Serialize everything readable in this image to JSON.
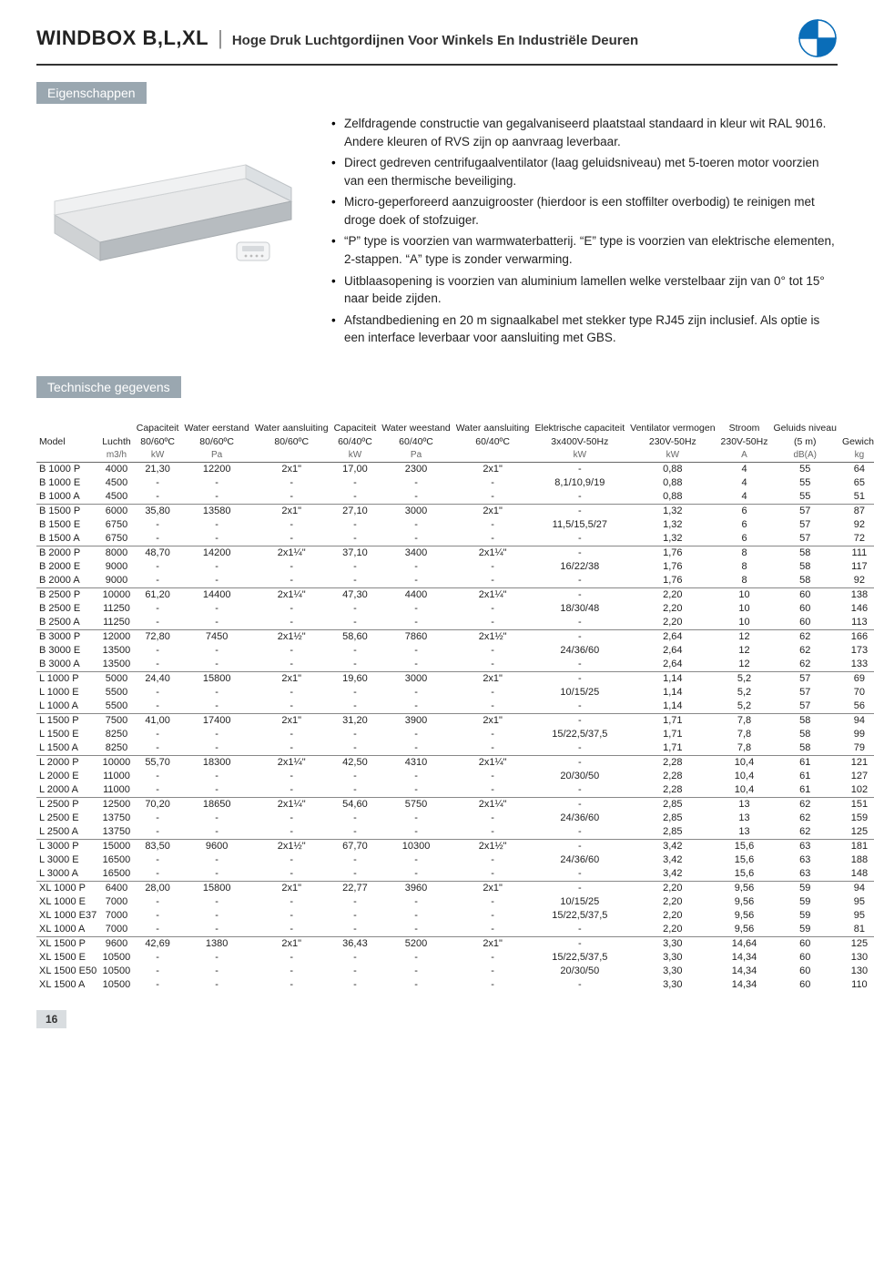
{
  "header": {
    "product": "WINDBOX B,L,XL",
    "subtitle": "Hoge Druk Luchtgordijnen Voor Winkels En Industriële Deuren",
    "logo_colors": {
      "tl": "#0a6db8",
      "tr": "#ffffff",
      "bl": "#ffffff",
      "br": "#0a6db8",
      "stroke": "#0a6db8"
    }
  },
  "section_eigenschappen": {
    "label": "Eigenschappen",
    "bullets": [
      "Zelfdragende constructie van gegalvaniseerd plaatstaal standaard in kleur wit RAL 9016. Andere kleuren of RVS zijn op aanvraag leverbaar.",
      "Direct gedreven centrifugaalventilator (laag geluidsniveau) met 5-toeren motor voorzien van een thermische beveiliging.",
      "Micro-geperforeerd aanzuigrooster (hierdoor is een stoffilter overbodig) te reinigen met droge doek of stofzuiger.",
      "“P” type is voorzien van warmwaterbatterij. “E” type is voorzien van elektrische elementen, 2-stappen. “A” type is zonder verwarming.",
      "Uitblaasopening is voorzien van aluminium lamellen welke verstelbaar zijn van 0° tot 15° naar beide zijden.",
      "Afstandbediening en 20 m signaalkabel met stekker type RJ45 zijn inclusief. Als optie is een interface leverbaar voor aansluiting met GBS."
    ]
  },
  "section_tech": {
    "label": "Technische gegevens",
    "columns": [
      {
        "l1": "",
        "l2": "Model",
        "unit": ""
      },
      {
        "l1": "",
        "l2": "Luchth",
        "unit": "m3/h"
      },
      {
        "l1": "Capaciteit",
        "l2": "80/60ºC",
        "unit": "kW"
      },
      {
        "l1": "Water eerstand",
        "l2": "80/60ºC",
        "unit": "Pa"
      },
      {
        "l1": "Water aansluiting",
        "l2": "80/60ºC",
        "unit": ""
      },
      {
        "l1": "Capaciteit",
        "l2": "60/40ºC",
        "unit": "kW"
      },
      {
        "l1": "Water weestand",
        "l2": "60/40ºC",
        "unit": "Pa"
      },
      {
        "l1": "Water aansluiting",
        "l2": "60/40ºC",
        "unit": ""
      },
      {
        "l1": "Elektrische capaciteit",
        "l2": "3x400V-50Hz",
        "unit": "kW"
      },
      {
        "l1": "Ventilator vermogen",
        "l2": "230V-50Hz",
        "unit": "kW"
      },
      {
        "l1": "Stroom",
        "l2": "230V-50Hz",
        "unit": "A"
      },
      {
        "l1": "Geluids niveau",
        "l2": "(5 m)",
        "unit": "dB(A)"
      },
      {
        "l1": "",
        "l2": "Gewicht",
        "unit": "kg"
      }
    ],
    "groups": [
      [
        [
          "B 1000 P",
          "4000",
          "21,30",
          "12200",
          "2x1\"",
          "17,00",
          "2300",
          "2x1\"",
          "-",
          "0,88",
          "4",
          "55",
          "64"
        ],
        [
          "B 1000 E",
          "4500",
          "-",
          "-",
          "-",
          "-",
          "-",
          "-",
          "8,1/10,9/19",
          "0,88",
          "4",
          "55",
          "65"
        ],
        [
          "B 1000 A",
          "4500",
          "-",
          "-",
          "-",
          "-",
          "-",
          "-",
          "-",
          "0,88",
          "4",
          "55",
          "51"
        ]
      ],
      [
        [
          "B 1500 P",
          "6000",
          "35,80",
          "13580",
          "2x1\"",
          "27,10",
          "3000",
          "2x1\"",
          "-",
          "1,32",
          "6",
          "57",
          "87"
        ],
        [
          "B 1500 E",
          "6750",
          "-",
          "-",
          "-",
          "-",
          "-",
          "-",
          "11,5/15,5/27",
          "1,32",
          "6",
          "57",
          "92"
        ],
        [
          "B 1500 A",
          "6750",
          "-",
          "-",
          "-",
          "-",
          "-",
          "-",
          "-",
          "1,32",
          "6",
          "57",
          "72"
        ]
      ],
      [
        [
          "B 2000 P",
          "8000",
          "48,70",
          "14200",
          "2x1¼\"",
          "37,10",
          "3400",
          "2x1¼\"",
          "-",
          "1,76",
          "8",
          "58",
          "111"
        ],
        [
          "B 2000 E",
          "9000",
          "-",
          "-",
          "-",
          "-",
          "-",
          "-",
          "16/22/38",
          "1,76",
          "8",
          "58",
          "117"
        ],
        [
          "B 2000 A",
          "9000",
          "-",
          "-",
          "-",
          "-",
          "-",
          "-",
          "-",
          "1,76",
          "8",
          "58",
          "92"
        ]
      ],
      [
        [
          "B 2500 P",
          "10000",
          "61,20",
          "14400",
          "2x1¼\"",
          "47,30",
          "4400",
          "2x1¼\"",
          "-",
          "2,20",
          "10",
          "60",
          "138"
        ],
        [
          "B 2500 E",
          "11250",
          "-",
          "-",
          "-",
          "-",
          "-",
          "-",
          "18/30/48",
          "2,20",
          "10",
          "60",
          "146"
        ],
        [
          "B 2500 A",
          "11250",
          "-",
          "-",
          "-",
          "-",
          "-",
          "-",
          "-",
          "2,20",
          "10",
          "60",
          "113"
        ]
      ],
      [
        [
          "B 3000 P",
          "12000",
          "72,80",
          "7450",
          "2x1½\"",
          "58,60",
          "7860",
          "2x1½\"",
          "-",
          "2,64",
          "12",
          "62",
          "166"
        ],
        [
          "B 3000 E",
          "13500",
          "-",
          "-",
          "-",
          "-",
          "-",
          "-",
          "24/36/60",
          "2,64",
          "12",
          "62",
          "173"
        ],
        [
          "B 3000 A",
          "13500",
          "-",
          "-",
          "-",
          "-",
          "-",
          "-",
          "-",
          "2,64",
          "12",
          "62",
          "133"
        ]
      ],
      [
        [
          "L 1000 P",
          "5000",
          "24,40",
          "15800",
          "2x1\"",
          "19,60",
          "3000",
          "2x1\"",
          "-",
          "1,14",
          "5,2",
          "57",
          "69"
        ],
        [
          "L 1000 E",
          "5500",
          "-",
          "-",
          "-",
          "-",
          "-",
          "-",
          "10/15/25",
          "1,14",
          "5,2",
          "57",
          "70"
        ],
        [
          "L 1000 A",
          "5500",
          "-",
          "-",
          "-",
          "-",
          "-",
          "-",
          "-",
          "1,14",
          "5,2",
          "57",
          "56"
        ]
      ],
      [
        [
          "L 1500 P",
          "7500",
          "41,00",
          "17400",
          "2x1\"",
          "31,20",
          "3900",
          "2x1\"",
          "-",
          "1,71",
          "7,8",
          "58",
          "94"
        ],
        [
          "L 1500 E",
          "8250",
          "-",
          "-",
          "-",
          "-",
          "-",
          "-",
          "15/22,5/37,5",
          "1,71",
          "7,8",
          "58",
          "99"
        ],
        [
          "L 1500 A",
          "8250",
          "-",
          "-",
          "-",
          "-",
          "-",
          "-",
          "-",
          "1,71",
          "7,8",
          "58",
          "79"
        ]
      ],
      [
        [
          "L 2000 P",
          "10000",
          "55,70",
          "18300",
          "2x1¼\"",
          "42,50",
          "4310",
          "2x1¼\"",
          "-",
          "2,28",
          "10,4",
          "61",
          "121"
        ],
        [
          "L 2000 E",
          "11000",
          "-",
          "-",
          "-",
          "-",
          "-",
          "-",
          "20/30/50",
          "2,28",
          "10,4",
          "61",
          "127"
        ],
        [
          "L 2000 A",
          "11000",
          "-",
          "-",
          "-",
          "-",
          "-",
          "-",
          "-",
          "2,28",
          "10,4",
          "61",
          "102"
        ]
      ],
      [
        [
          "L 2500 P",
          "12500",
          "70,20",
          "18650",
          "2x1¼\"",
          "54,60",
          "5750",
          "2x1¼\"",
          "-",
          "2,85",
          "13",
          "62",
          "151"
        ],
        [
          "L 2500 E",
          "13750",
          "-",
          "-",
          "-",
          "-",
          "-",
          "-",
          "24/36/60",
          "2,85",
          "13",
          "62",
          "159"
        ],
        [
          "L 2500 A",
          "13750",
          "-",
          "-",
          "-",
          "-",
          "-",
          "-",
          "-",
          "2,85",
          "13",
          "62",
          "125"
        ]
      ],
      [
        [
          "L 3000 P",
          "15000",
          "83,50",
          "9600",
          "2x1½\"",
          "67,70",
          "10300",
          "2x1½\"",
          "-",
          "3,42",
          "15,6",
          "63",
          "181"
        ],
        [
          "L 3000 E",
          "16500",
          "-",
          "-",
          "-",
          "-",
          "-",
          "-",
          "24/36/60",
          "3,42",
          "15,6",
          "63",
          "188"
        ],
        [
          "L 3000 A",
          "16500",
          "-",
          "-",
          "-",
          "-",
          "-",
          "-",
          "-",
          "3,42",
          "15,6",
          "63",
          "148"
        ]
      ],
      [
        [
          "XL 1000 P",
          "6400",
          "28,00",
          "15800",
          "2x1\"",
          "22,77",
          "3960",
          "2x1\"",
          "-",
          "2,20",
          "9,56",
          "59",
          "94"
        ],
        [
          "XL 1000 E",
          "7000",
          "-",
          "-",
          "-",
          "-",
          "-",
          "-",
          "10/15/25",
          "2,20",
          "9,56",
          "59",
          "95"
        ],
        [
          "XL 1000 E37",
          "7000",
          "-",
          "-",
          "-",
          "-",
          "-",
          "-",
          "15/22,5/37,5",
          "2,20",
          "9,56",
          "59",
          "95"
        ],
        [
          "XL 1000 A",
          "7000",
          "-",
          "-",
          "-",
          "-",
          "-",
          "-",
          "-",
          "2,20",
          "9,56",
          "59",
          "81"
        ]
      ],
      [
        [
          "XL 1500 P",
          "9600",
          "42,69",
          "1380",
          "2x1\"",
          "36,43",
          "5200",
          "2x1\"",
          "-",
          "3,30",
          "14,64",
          "60",
          "125"
        ],
        [
          "XL 1500 E",
          "10500",
          "-",
          "-",
          "-",
          "-",
          "-",
          "-",
          "15/22,5/37,5",
          "3,30",
          "14,34",
          "60",
          "130"
        ],
        [
          "XL 1500 E50",
          "10500",
          "-",
          "-",
          "-",
          "-",
          "-",
          "-",
          "20/30/50",
          "3,30",
          "14,34",
          "60",
          "130"
        ],
        [
          "XL 1500 A",
          "10500",
          "-",
          "-",
          "-",
          "-",
          "-",
          "-",
          "-",
          "3,30",
          "14,34",
          "60",
          "110"
        ]
      ]
    ]
  },
  "page_number": "16",
  "product_image": {
    "body_color": "#e8e9ea",
    "front_color": "#cfd2d4",
    "grill_color": "#b7bcc0",
    "remote_color": "#f4f5f6"
  }
}
